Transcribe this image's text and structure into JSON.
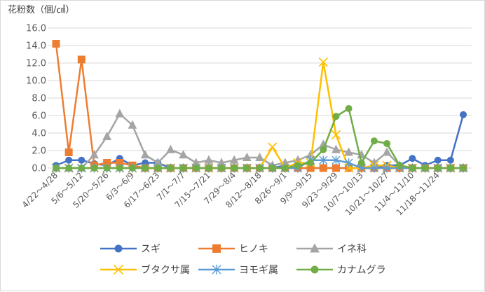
{
  "chart_data": {
    "type": "line",
    "title": "",
    "ylabel": "花粉数（個/㎠）",
    "xlabel": "",
    "ylim": [
      0,
      16
    ],
    "yticks": [
      "0.0",
      "2.0",
      "4.0",
      "6.0",
      "8.0",
      "10.0",
      "12.0",
      "14.0",
      "16.0"
    ],
    "grid": true,
    "legend_position": "bottom",
    "x_tick_labels": [
      "4/22～4/28",
      "5/6～5/12",
      "5/20～5/26",
      "6/3～6/9",
      "6/17～6/23",
      "7/1～7/7",
      "7/15～7/21",
      "7/29～8/4",
      "8/12～8/18",
      "8/26～9/1",
      "9/9～9/15",
      "9/23～9/29",
      "10/7～10/13",
      "10/21～10/27",
      "11/4～11/10",
      "11/18～11/24"
    ],
    "series": [
      {
        "name": "スギ",
        "color": "#4472c4",
        "marker": "circle",
        "values": [
          0.3,
          0.9,
          0.9,
          0.5,
          0.3,
          1.1,
          0.3,
          0.6,
          0.6,
          0,
          0,
          0,
          0,
          0,
          0,
          0,
          0,
          0,
          0.3,
          0,
          0,
          0,
          0,
          0,
          0,
          0,
          0.3,
          0.3,
          1.1,
          0.3,
          0.9,
          0.9,
          6.1
        ]
      },
      {
        "name": "ヒノキ",
        "color": "#ed7d31",
        "marker": "square",
        "values": [
          14.2,
          1.8,
          12.4,
          0.3,
          0.6,
          0.6,
          0.3,
          0,
          0,
          0,
          0,
          0,
          0,
          0,
          0,
          0,
          0,
          0,
          0,
          0,
          0,
          0,
          0,
          0,
          0,
          0,
          0,
          0,
          0,
          0,
          0,
          0,
          0
        ]
      },
      {
        "name": "イネ科",
        "color": "#a5a5a5",
        "marker": "triangle",
        "values": [
          0,
          0,
          0,
          1.5,
          3.6,
          6.2,
          4.9,
          1.5,
          0.6,
          2.1,
          1.5,
          0.6,
          0.9,
          0.6,
          0.9,
          1.2,
          1.2,
          0.3,
          0.6,
          0.9,
          1.5,
          2.7,
          2.1,
          1.8,
          1.5,
          0.6,
          1.8,
          0.3,
          0,
          0,
          0,
          0,
          0
        ]
      },
      {
        "name": "ブタクサ属",
        "color": "#ffc000",
        "marker": "x",
        "values": [
          0,
          0,
          0,
          0,
          0,
          0,
          0,
          0,
          0,
          0,
          0,
          0,
          0,
          0,
          0,
          0,
          0,
          2.4,
          0,
          0.6,
          0.6,
          12.1,
          3.8,
          0,
          0,
          0.3,
          0.3,
          0,
          0,
          0,
          0,
          0,
          0
        ]
      },
      {
        "name": "ヨモギ属",
        "color": "#5b9bd5",
        "marker": "star",
        "values": [
          0,
          0,
          0,
          0,
          0,
          0,
          0,
          0,
          0,
          0,
          0,
          0,
          0,
          0,
          0,
          0,
          0,
          0,
          0,
          0,
          0.9,
          0.9,
          0.9,
          0.6,
          0,
          0,
          0,
          0,
          0,
          0,
          0,
          0,
          0
        ]
      },
      {
        "name": "カナムグラ",
        "color": "#70ad47",
        "marker": "circle",
        "values": [
          0,
          0,
          0,
          0,
          0,
          0,
          0,
          0,
          0,
          0,
          0,
          0,
          0,
          0,
          0,
          0,
          0,
          0,
          0,
          0.3,
          0.6,
          2.1,
          5.9,
          6.8,
          0.6,
          3.1,
          2.8,
          0.3,
          0,
          0,
          0,
          0,
          0
        ]
      }
    ]
  }
}
